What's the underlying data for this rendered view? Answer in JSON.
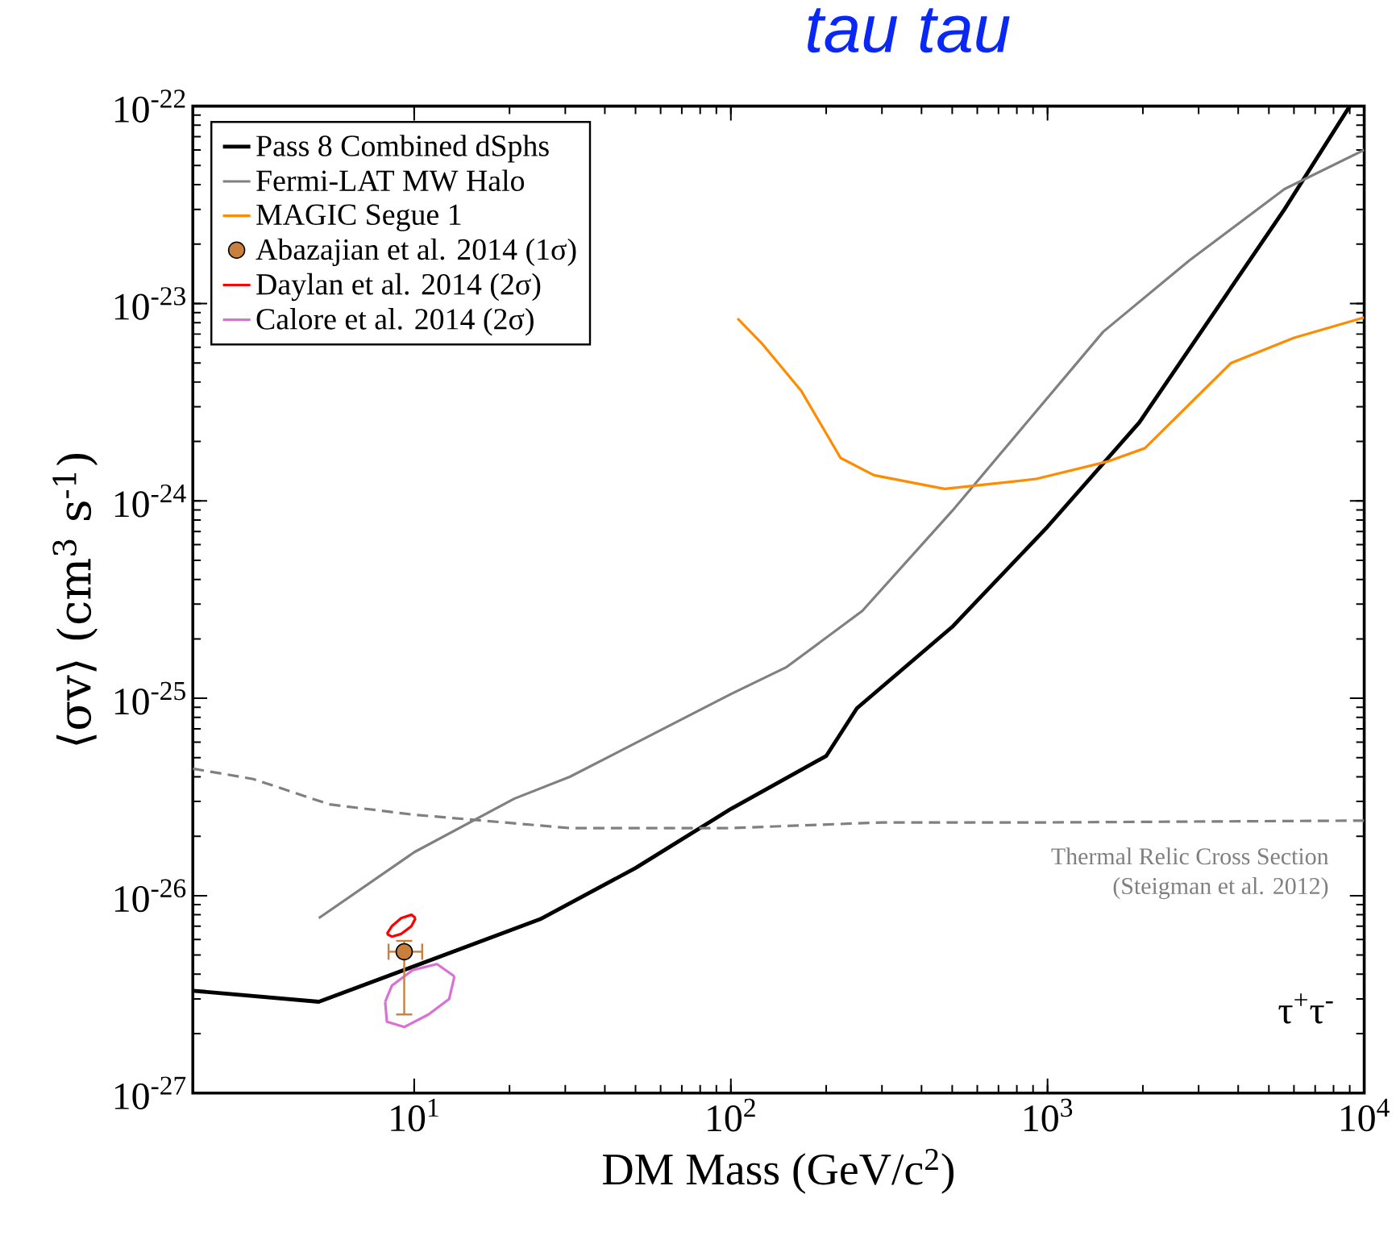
{
  "chart_data": {
    "type": "line",
    "title": "tau tau",
    "xlabel": "DM Mass (GeV/c$^{2}$)",
    "ylabel": "⟨σv⟩ (cm$^{3}$ s$^{-1}$)",
    "log": "xy",
    "xlim": [
      2,
      10000
    ],
    "ylim": [
      1e-27,
      1e-22
    ],
    "xticks": [
      {
        "value": 10,
        "label": "10$^{1}$"
      },
      {
        "value": 100,
        "label": "10$^{2}$"
      },
      {
        "value": 1000,
        "label": "10$^{3}$"
      },
      {
        "value": 10000,
        "label": "10$^{4}$"
      }
    ],
    "yticks": [
      {
        "value": 1e-27,
        "label": "10$^{-27}$"
      },
      {
        "value": 1e-26,
        "label": "10$^{-26}$"
      },
      {
        "value": 1e-25,
        "label": "10$^{-25}$"
      },
      {
        "value": 1e-24,
        "label": "10$^{-24}$"
      },
      {
        "value": 1e-23,
        "label": "10$^{-23}$"
      },
      {
        "value": 1e-22,
        "label": "10$^{-22}$"
      }
    ],
    "legend": "top left",
    "grid": false,
    "series": [
      {
        "name": "Pass 8 Combined dSphs",
        "color": "#000000",
        "marker": "none",
        "line_style": "solid",
        "x": [
          2,
          5,
          25,
          50,
          100,
          200,
          250,
          500,
          1000,
          1950,
          5600,
          9000
        ],
        "values": [
          3.3e-27,
          2.9e-27,
          7.6e-27,
          1.38e-26,
          2.75e-26,
          5.1e-26,
          8.9e-26,
          2.3e-25,
          7.4e-25,
          2.5e-24,
          3e-23,
          1e-22
        ]
      },
      {
        "name": "Fermi-LAT MW Halo",
        "color": "#808080",
        "marker": "none",
        "line_style": "solid",
        "x": [
          5,
          10,
          20.7,
          31,
          100,
          150,
          260,
          500,
          1500,
          2800,
          5600,
          10000
        ],
        "values": [
          7.7e-27,
          1.66e-26,
          3.1e-26,
          4e-26,
          1.05e-25,
          1.44e-25,
          2.77e-25,
          8.9e-25,
          7.2e-24,
          1.65e-23,
          3.8e-23,
          6e-23
        ]
      },
      {
        "name": "MAGIC Segue 1",
        "color": "#ff8c00",
        "marker": "none",
        "line_style": "solid",
        "x": [
          105,
          125,
          167,
          222,
          283,
          473,
          915,
          1540,
          2030,
          3800,
          6000,
          10000
        ],
        "values": [
          8.4e-24,
          6.3e-24,
          3.6e-24,
          1.65e-24,
          1.35e-24,
          1.15e-24,
          1.29e-24,
          1.58e-24,
          1.85e-24,
          5e-24,
          6.7e-24,
          8.5e-24
        ]
      },
      {
        "name": "Abazajian et al. 2014 (1σ)",
        "type": "scatter",
        "color": "#c8803c",
        "marker": "circle",
        "x": [
          9.3
        ],
        "values": [
          5.2e-27
        ],
        "errors": [
          [
            2.5e-27,
            5.9e-27
          ]
        ],
        "xerrors": [
          [
            8.3,
            10.6
          ]
        ]
      },
      {
        "name": "Daylan et al. 2014 (2σ)",
        "color": "#ff0000",
        "marker": "none",
        "line_style": "solid",
        "x": [
          8.2,
          8.5,
          9.1,
          9.8,
          10.1
        ],
        "values": [
          6.4e-27,
          7e-27,
          7.7e-27,
          8e-27,
          7.7e-27
        ]
      },
      {
        "name": "Calore et al. 2014 (2σ)",
        "color": "#da70d6",
        "marker": "none",
        "line_style": "solid",
        "x": [
          8.1,
          8.5,
          9.9,
          11.8,
          13.4
        ],
        "values": [
          2.9e-27,
          3.5e-27,
          4.2e-27,
          4.5e-27,
          3.9e-27
        ]
      },
      {
        "color": "#ff0000",
        "marker": "none",
        "line_style": "solid",
        "x": [
          8.2,
          8.5,
          9.1,
          9.8,
          10.1
        ],
        "values": [
          6.4e-27,
          6.2e-27,
          6.4e-27,
          7e-27,
          7.7e-27
        ]
      },
      {
        "color": "#da70d6",
        "marker": "none",
        "line_style": "solid",
        "x": [
          8.1,
          8.2,
          9.3,
          11.1,
          12.9,
          13.4
        ],
        "values": [
          2.9e-27,
          2.3e-27,
          2.16e-27,
          2.5e-27,
          3e-27,
          3.9e-27
        ]
      },
      {
        "color": "#808080",
        "marker": "none",
        "line_style": "dashed",
        "x": [
          2,
          3.1,
          5.4,
          10,
          31,
          100,
          300,
          1000,
          10000
        ],
        "values": [
          4.4e-26,
          3.9e-26,
          2.9e-26,
          2.57e-26,
          2.2e-26,
          2.2e-26,
          2.35e-26,
          2.35e-26,
          2.4e-26
        ]
      }
    ],
    "annotations": [
      "Thermal Relic Cross Section",
      "(Steigman et al. 2012)",
      "τ$^{+}$τ$^{-}$"
    ]
  }
}
